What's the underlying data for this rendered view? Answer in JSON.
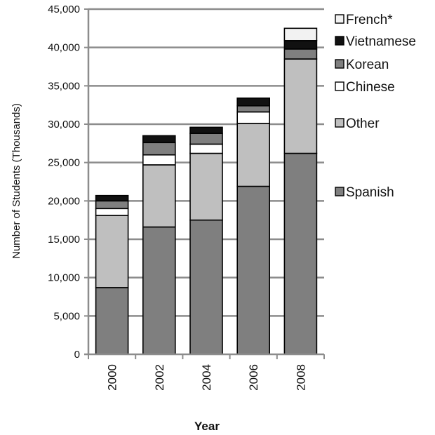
{
  "chart_data": {
    "type": "bar",
    "stacked": true,
    "title": "",
    "xlabel": "Year",
    "ylabel": "Number of Students (Thousands)",
    "categories": [
      "2000",
      "2002",
      "2004",
      "2006",
      "2008"
    ],
    "ylim": [
      0,
      45000
    ],
    "yticks": [
      0,
      5000,
      10000,
      15000,
      20000,
      25000,
      30000,
      35000,
      40000,
      45000
    ],
    "ytick_labels": [
      "0",
      "5,000",
      "10,000",
      "15,000",
      "20,000",
      "25,000",
      "30,000",
      "35,000",
      "40,000",
      "45,000"
    ],
    "grid": "horizontal",
    "legend_placement": "right",
    "series": [
      {
        "name": "Spanish",
        "color": "#7f7f7f",
        "values": [
          8700,
          16600,
          17500,
          21900,
          26200
        ]
      },
      {
        "name": "Other",
        "color": "#bfbfbf",
        "values": [
          9400,
          8100,
          8700,
          8200,
          12300
        ]
      },
      {
        "name": "Chinese",
        "color": "#ffffff",
        "values": [
          900,
          1300,
          1200,
          1500,
          0
        ]
      },
      {
        "name": "Korean",
        "color": "#7f7f7f",
        "values": [
          1000,
          1600,
          1400,
          800,
          1300
        ]
      },
      {
        "name": "Vietnamese",
        "color": "#111111",
        "values": [
          700,
          900,
          800,
          1000,
          1100
        ]
      },
      {
        "name": "French*",
        "color": "#f2f2f2",
        "values": [
          0,
          0,
          0,
          0,
          1600
        ]
      }
    ],
    "legend_order": [
      "French*",
      "Vietnamese",
      "Korean",
      "Chinese",
      "Other",
      "Spanish"
    ]
  }
}
